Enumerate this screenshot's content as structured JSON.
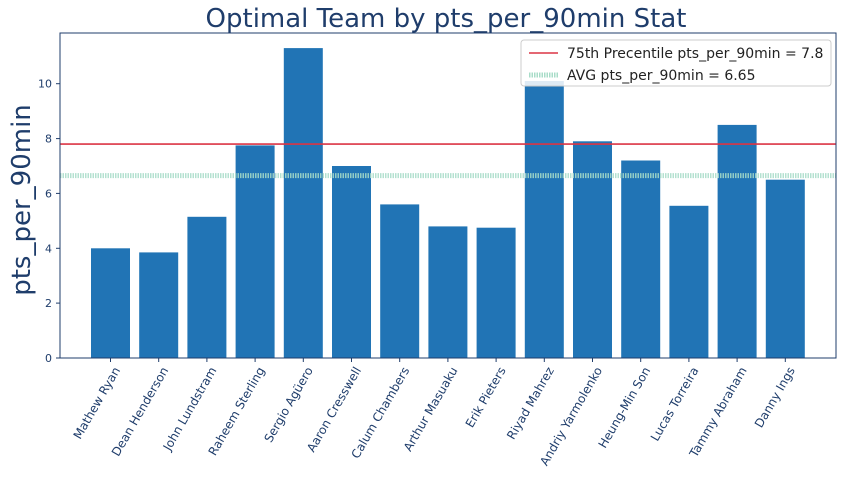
{
  "chart_data": {
    "type": "bar",
    "title": "Optimal Team by pts_per_90min Stat",
    "xlabel": "",
    "ylabel": "pts_per_90min",
    "ylim": [
      0,
      11.85
    ],
    "yticks": [
      0,
      2,
      4,
      6,
      8,
      10
    ],
    "grid": false,
    "legend_position": "top-right",
    "categories": [
      "Mathew Ryan",
      "Dean Henderson",
      "John Lundstram",
      "Raheem Sterling",
      "Sergio Agüero",
      "Aaron Cresswell",
      "Calum Chambers",
      "Arthur Masuaku",
      "Erik Pieters",
      "Riyad Mahrez",
      "Andriy Yarmolenko",
      "Heung-Min Son",
      "Lucas Torreira",
      "Tammy Abraham",
      "Danny Ings"
    ],
    "values": [
      4.0,
      3.85,
      5.15,
      7.75,
      11.3,
      7.0,
      5.6,
      4.8,
      4.75,
      10.1,
      7.9,
      7.2,
      5.55,
      8.5,
      6.5
    ],
    "reference_lines": [
      {
        "label": "75th Precentile pts_per_90min = 7.8",
        "value": 7.8,
        "style": "solid",
        "color": "#dc3545"
      },
      {
        "label": "AVG pts_per_90min = 6.65",
        "value": 6.65,
        "style": "dotted",
        "color": "#a8dcc8"
      }
    ],
    "colors": {
      "bar": "#2174b5",
      "title": "#1f3d6b",
      "axis": "#1f3d6b",
      "ytick_text": "#1f3d6b",
      "xtick_text": "#1f3d6b"
    }
  }
}
